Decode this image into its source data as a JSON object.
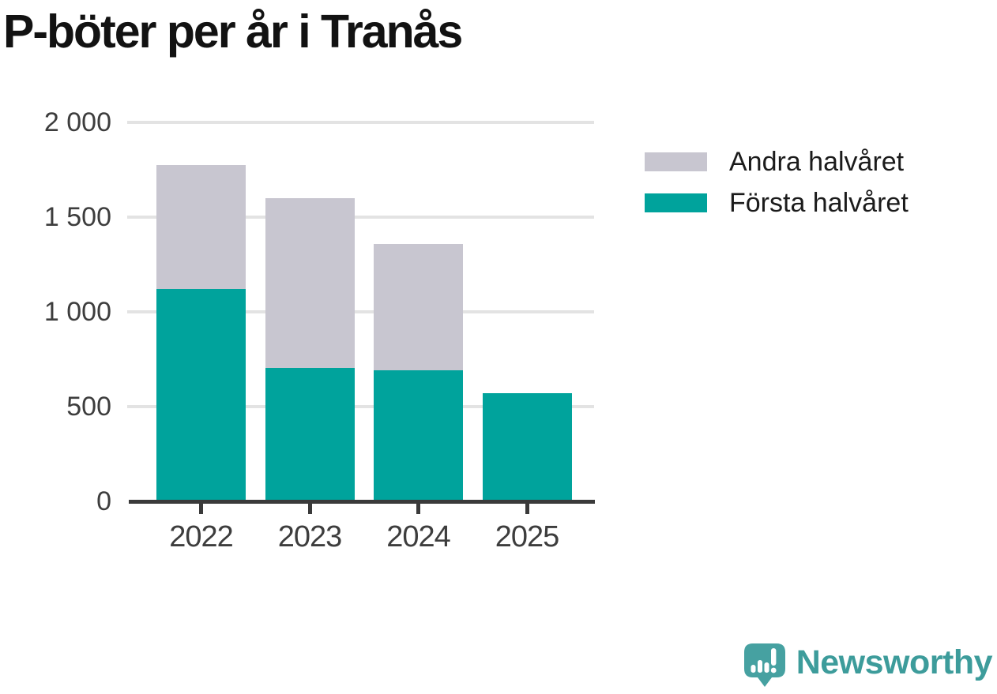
{
  "title": "P-böter per år i Tranås",
  "legend": {
    "items": [
      {
        "label": "Andra halvåret",
        "color": "#c8c6d0"
      },
      {
        "label": "Första halvåret",
        "color": "#00a39c"
      }
    ]
  },
  "chart_data": {
    "type": "bar",
    "stacked": true,
    "title": "P-böter per år i Tranås",
    "categories": [
      "2022",
      "2023",
      "2024",
      "2025"
    ],
    "series": [
      {
        "name": "Första halvåret",
        "color": "#00a39c",
        "values": [
          1120,
          705,
          690,
          570
        ]
      },
      {
        "name": "Andra halvåret",
        "color": "#c8c6d0",
        "values": [
          655,
          895,
          670,
          0
        ]
      }
    ],
    "xlabel": "",
    "ylabel": "",
    "ylim": [
      0,
      2000
    ],
    "y_ticks": [
      {
        "label": "2 000",
        "value": 2000
      },
      {
        "label": "1 500",
        "value": 1500
      },
      {
        "label": "1 000",
        "value": 1000
      },
      {
        "label": "500",
        "value": 500
      },
      {
        "label": "0",
        "value": 0
      }
    ],
    "grid": true,
    "legend_position": "right-top"
  },
  "colors": {
    "first_half": "#00a39c",
    "second_half": "#c8c6d0",
    "grid": "#e3e3e3",
    "axis": "#3a3a3a",
    "tick_text": "#3d3d3d",
    "title_text": "#121212",
    "brand_teal": "#3d9c9b",
    "logo_teal": "#46a1a1"
  },
  "branding": {
    "wordmark": "Newsworthy"
  }
}
